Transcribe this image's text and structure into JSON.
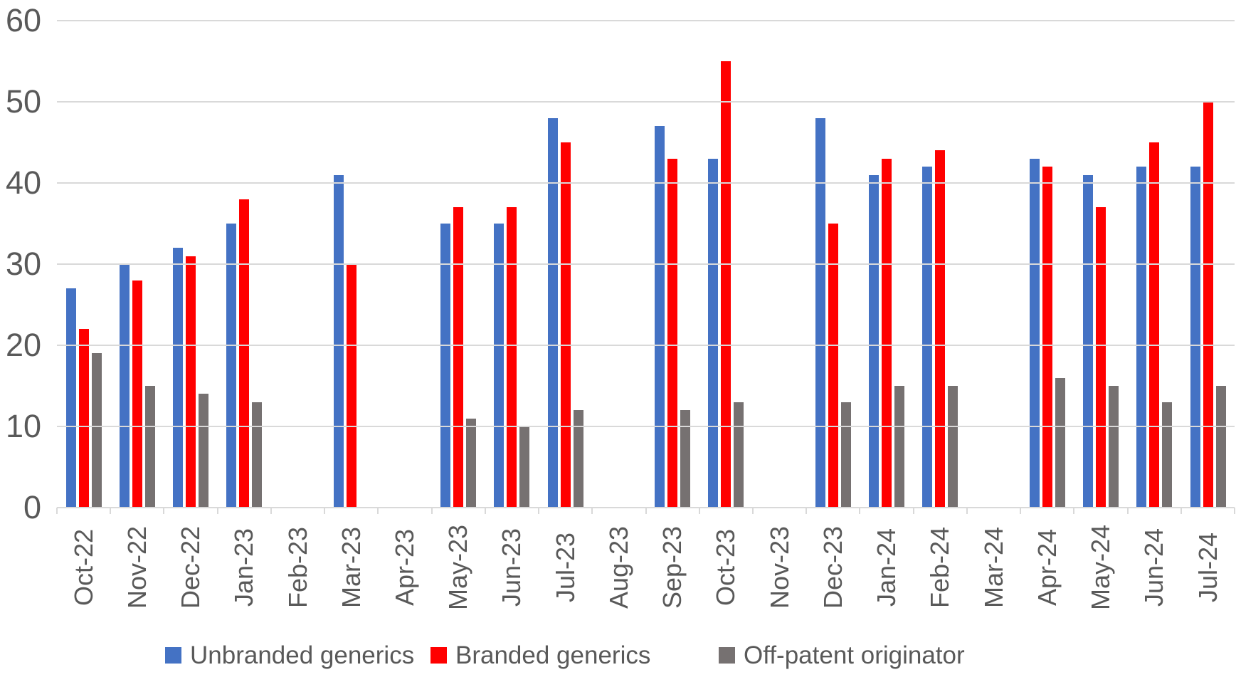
{
  "chart_data": {
    "type": "bar",
    "title": "",
    "xlabel": "",
    "ylabel": "",
    "categories": [
      "Oct-22",
      "Nov-22",
      "Dec-22",
      "Jan-23",
      "Feb-23",
      "Mar-23",
      "Apr-23",
      "May-23",
      "Jun-23",
      "Jul-23",
      "Aug-23",
      "Sep-23",
      "Oct-23",
      "Nov-23",
      "Dec-23",
      "Jan-24",
      "Feb-24",
      "Mar-24",
      "Apr-24",
      "May-24",
      "Jun-24",
      "Jul-24"
    ],
    "series": [
      {
        "name": "Unbranded generics",
        "color": "#4472C4",
        "values": [
          27,
          30,
          32,
          35,
          null,
          41,
          null,
          35,
          35,
          48,
          null,
          47,
          43,
          null,
          48,
          41,
          42,
          null,
          43,
          41,
          42,
          42
        ]
      },
      {
        "name": "Branded generics",
        "color": "#FF0000",
        "values": [
          22,
          28,
          31,
          38,
          null,
          30,
          null,
          37,
          37,
          45,
          null,
          43,
          55,
          null,
          35,
          43,
          44,
          null,
          42,
          37,
          45,
          50
        ]
      },
      {
        "name": "Off-patent originator",
        "color": "#767171",
        "values": [
          19,
          15,
          14,
          13,
          null,
          null,
          null,
          11,
          10,
          12,
          null,
          12,
          13,
          null,
          13,
          15,
          15,
          null,
          16,
          15,
          13,
          15
        ]
      }
    ],
    "y_axis": {
      "min": 0,
      "max": 60,
      "tick_step": 10,
      "ticks": [
        0,
        10,
        20,
        30,
        40,
        50,
        60
      ]
    },
    "grid": true,
    "legend_position": "bottom",
    "gridline_color": "#D9D9D9",
    "text_color": "#595959"
  }
}
